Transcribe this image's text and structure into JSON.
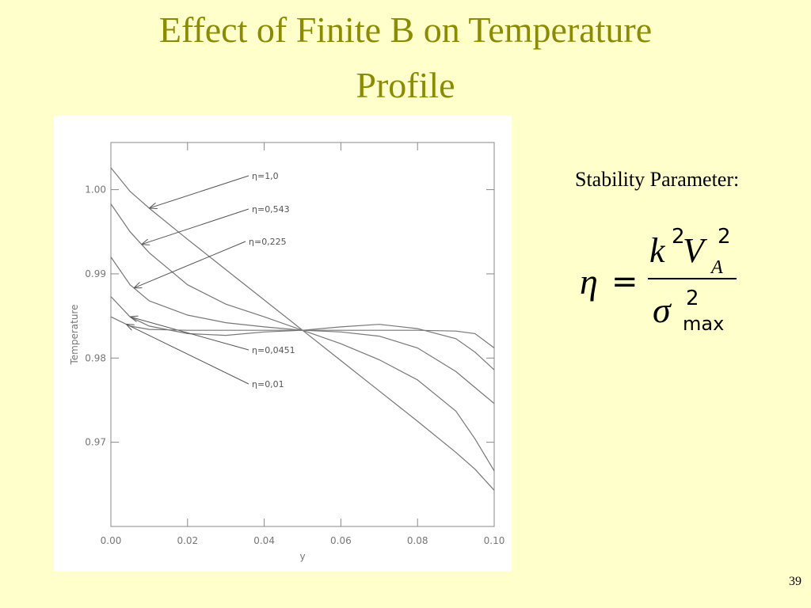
{
  "slide": {
    "title_line1": "Effect of Finite B on Temperature",
    "title_line2": "Profile",
    "stability_label": "Stability Parameter:",
    "page_number": "39",
    "formula": {
      "lhs": "η",
      "eq": "=",
      "k": "k",
      "k_exp": "2",
      "v": "V",
      "v_sub": "A",
      "v_exp": "2",
      "sigma": "σ",
      "sigma_exp": "2",
      "sigma_sub": "max"
    }
  },
  "chart_data": {
    "type": "line",
    "xlabel": "y",
    "ylabel": "Temperature",
    "x": [
      0,
      0.005,
      0.01,
      0.02,
      0.03,
      0.04,
      0.05,
      0.06,
      0.07,
      0.08,
      0.09,
      0.095,
      0.1
    ],
    "series": [
      {
        "name": "η=1,0",
        "color": "#777777",
        "values": [
          1.0026,
          0.9998,
          0.9978,
          0.9941,
          0.9905,
          0.9869,
          0.9833,
          0.9797,
          0.9761,
          0.9725,
          0.9688,
          0.9668,
          0.9643
        ]
      },
      {
        "name": "η=0,543",
        "color": "#777777",
        "values": [
          0.9983,
          0.995,
          0.9925,
          0.9887,
          0.9864,
          0.9849,
          0.9833,
          0.9817,
          0.9798,
          0.9774,
          0.9737,
          0.9704,
          0.9666
        ]
      },
      {
        "name": "η=0,225",
        "color": "#777777",
        "values": [
          0.992,
          0.9887,
          0.9868,
          0.9851,
          0.9842,
          0.9837,
          0.9833,
          0.9831,
          0.9826,
          0.9812,
          0.9784,
          0.9765,
          0.9746
        ]
      },
      {
        "name": "η=0,0451",
        "color": "#777777",
        "values": [
          0.9873,
          0.9849,
          0.9838,
          0.9829,
          0.9827,
          0.9831,
          0.9833,
          0.9837,
          0.984,
          0.9835,
          0.9823,
          0.9807,
          0.9786
        ]
      },
      {
        "name": "η=0,01",
        "color": "#777777",
        "values": [
          0.9849,
          0.9838,
          0.9834,
          0.9833,
          0.9833,
          0.9833,
          0.9833,
          0.9833,
          0.9833,
          0.9833,
          0.9832,
          0.9829,
          0.9812
        ]
      }
    ],
    "xlim": [
      0,
      0.1
    ],
    "ylim": [
      0.96,
      1.0056
    ],
    "xticks": [
      {
        "value": 0,
        "label": "0.00"
      },
      {
        "value": 0.02,
        "label": "0.02"
      },
      {
        "value": 0.04,
        "label": "0.04"
      },
      {
        "value": 0.06,
        "label": "0.06"
      },
      {
        "value": 0.08,
        "label": "0.08"
      },
      {
        "value": 0.1,
        "label": "0.10"
      }
    ],
    "yticks": [
      {
        "value": 0.97,
        "label": "0.97"
      },
      {
        "value": 0.98,
        "label": "0.98"
      },
      {
        "value": 0.99,
        "label": "0.99"
      },
      {
        "value": 1.0,
        "label": "1.00"
      }
    ]
  }
}
